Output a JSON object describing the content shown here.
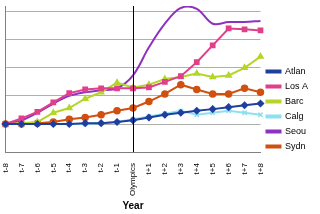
{
  "chart_data": {
    "type": "line",
    "x_label": "Year",
    "categories": [
      "t-8",
      "t-7",
      "t-6",
      "t-5",
      "t-4",
      "t-3",
      "t-2",
      "t-1",
      "Olympics",
      "t+1",
      "t+2",
      "t+3",
      "t+4",
      "t+5",
      "t+6",
      "t+7",
      "t+8"
    ],
    "series": [
      {
        "name": "Atlan",
        "color": "#1f3f9f",
        "marker": "diamond",
        "values": [
          1.0,
          1.0,
          1.0,
          1.0,
          1.0,
          1.03,
          1.03,
          1.07,
          1.13,
          1.23,
          1.33,
          1.4,
          1.47,
          1.53,
          1.6,
          1.67,
          1.73
        ]
      },
      {
        "name": "Los A",
        "color": "#e0408a",
        "marker": "square",
        "values": [
          1.0,
          1.2,
          1.43,
          1.77,
          2.1,
          2.23,
          2.27,
          2.27,
          2.27,
          2.3,
          2.5,
          2.7,
          3.2,
          3.8,
          4.4,
          4.37,
          4.33
        ]
      },
      {
        "name": "Barc",
        "color": "#b5d52a",
        "marker": "triangle",
        "values": [
          1.0,
          1.03,
          1.07,
          1.4,
          1.57,
          1.9,
          2.13,
          2.47,
          2.3,
          2.4,
          2.6,
          2.67,
          2.8,
          2.67,
          2.73,
          3.0,
          3.4
        ]
      },
      {
        "name": "Calg",
        "color": "#8fe0ef",
        "marker": "x",
        "values": [
          1.0,
          1.0,
          1.0,
          1.0,
          1.0,
          1.0,
          1.03,
          1.07,
          1.17,
          1.27,
          1.37,
          1.47,
          1.33,
          1.4,
          1.47,
          1.4,
          1.33
        ]
      },
      {
        "name": "Seou",
        "color": "#9030c0",
        "marker": "none",
        "values": [
          1.0,
          1.13,
          1.4,
          1.73,
          2.0,
          2.13,
          2.2,
          2.27,
          2.73,
          3.73,
          4.57,
          5.13,
          5.1,
          4.57,
          4.63,
          4.63,
          4.67
        ]
      },
      {
        "name": "Sydn",
        "color": "#d05010",
        "marker": "circle",
        "values": [
          1.0,
          1.0,
          1.03,
          1.07,
          1.17,
          1.23,
          1.33,
          1.47,
          1.57,
          1.8,
          2.07,
          2.4,
          2.23,
          2.07,
          2.07,
          2.27,
          2.13
        ]
      }
    ],
    "ylim": [
      0,
      5.2
    ],
    "yticks": [
      0,
      1,
      2,
      3,
      4,
      5
    ],
    "grid": true,
    "legend": "right",
    "tick_labels": "x"
  }
}
